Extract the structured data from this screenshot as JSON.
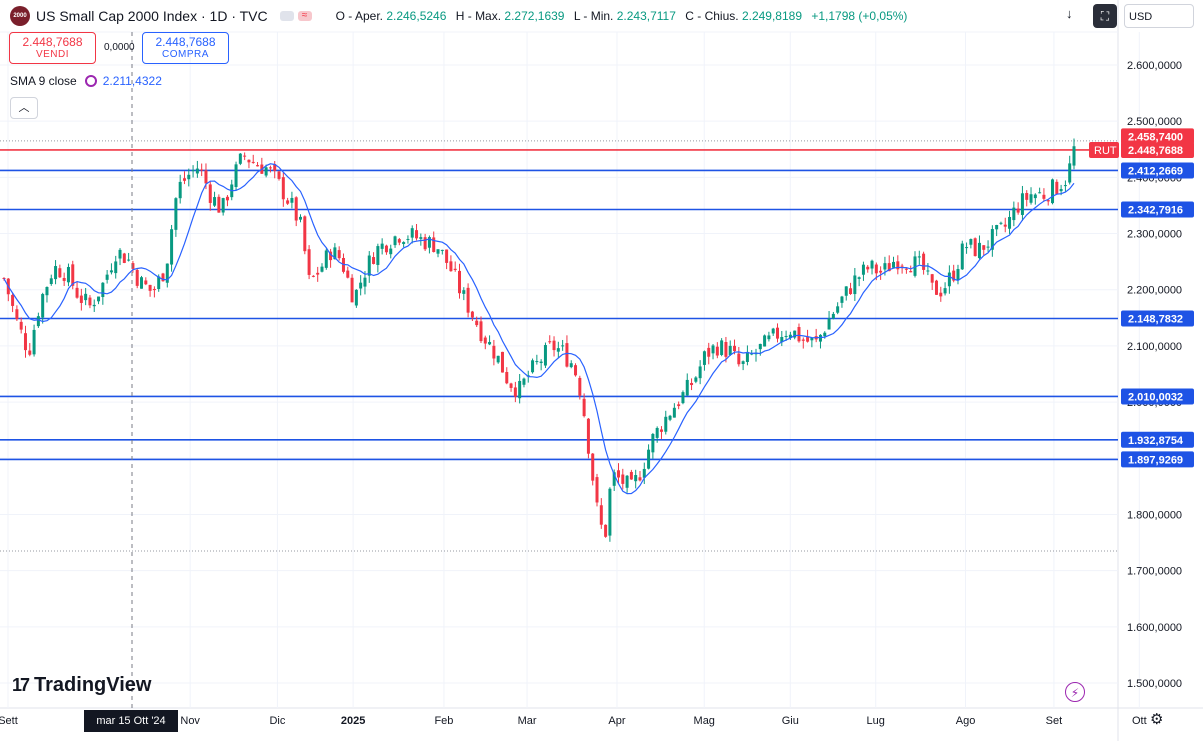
{
  "header": {
    "logo_text": "2000",
    "symbol": "US Small Cap 2000 Index · 1D · TVC",
    "ohlc": [
      {
        "label": "O - Aper.",
        "value": "2.246,5246"
      },
      {
        "label": "H - Max.",
        "value": "2.272,1639"
      },
      {
        "label": "L - Min.",
        "value": "2.243,7117"
      },
      {
        "label": "C - Chius.",
        "value": "2.249,8189"
      }
    ],
    "change": "+1,1798 (+0,05%)",
    "currency": "USD",
    "icons": [
      "download-arrow-icon",
      "screenshot-icon"
    ]
  },
  "trade": {
    "sell_price": "2.448,7688",
    "sell_label": "VENDI",
    "spread": "0,0000",
    "buy_price": "2.448,7688",
    "buy_label": "COMPRA"
  },
  "indicator": {
    "label": "SMA 9 close",
    "value": "2.211,4322"
  },
  "branding": {
    "logo": "TradingView"
  },
  "crosshair_date": "mar 15 Ott '24",
  "chart_data": {
    "type": "candlestick",
    "ylim": [
      1440000,
      2640000
    ],
    "y_ticks": [
      "2.600,0000",
      "2.500,0000",
      "2.400,0000",
      "2.300,0000",
      "2.200,0000",
      "2.100,0000",
      "2.000,0000",
      "1.900,0000",
      "1.800,0000",
      "1.700,0000",
      "1.600,0000",
      "1.500,0000"
    ],
    "y_tick_values": [
      2600000,
      2500000,
      2400000,
      2300000,
      2200000,
      2100000,
      2000000,
      1900000,
      1800000,
      1700000,
      1600000,
      1500000
    ],
    "x_labels": [
      "Sett",
      "Nov",
      "Dic",
      "2025",
      "Feb",
      "Mar",
      "Apr",
      "Mag",
      "Giu",
      "Lug",
      "Ago",
      "Set",
      "Ott"
    ],
    "x_label_positions": [
      0.0,
      0.1653,
      0.2445,
      0.3132,
      0.3956,
      0.471,
      0.5526,
      0.6318,
      0.7099,
      0.7874,
      0.8689,
      0.9491,
      1.0266
    ],
    "levels": [
      {
        "label": "2.412,2669",
        "value": 2412266.9,
        "color": "#1e53e5",
        "style": "solid-blue-label"
      },
      {
        "label": "2.342,7916",
        "value": 2342791.6,
        "color": "#1e53e5"
      },
      {
        "label": "2.148,7832",
        "value": 2148783.2,
        "color": "#1e53e5"
      },
      {
        "label": "2.010,0032",
        "value": 2010003.2,
        "color": "#1e53e5"
      },
      {
        "label": "1.932,8754",
        "value": 1932875.4,
        "color": "#1e53e5"
      },
      {
        "label": "1.897,9269",
        "value": 1897926.9,
        "color": "#1e53e5"
      }
    ],
    "price_line": {
      "label": "2.448,7688",
      "value": 2448768.8,
      "tag": "RUT",
      "color": "#f23645"
    },
    "high_label": {
      "label": "2.458,7400",
      "value": 2458740.0,
      "color": "#f23645"
    },
    "high_dotted": 2465000,
    "low_dotted": 1735000,
    "series_points": [
      [
        0,
        2220
      ],
      [
        8,
        2140
      ],
      [
        15,
        2090
      ],
      [
        22,
        2180
      ],
      [
        30,
        2240
      ],
      [
        38,
        2230
      ],
      [
        45,
        2190
      ],
      [
        52,
        2170
      ],
      [
        60,
        2210
      ],
      [
        68,
        2270
      ],
      [
        75,
        2255
      ],
      [
        82,
        2215
      ],
      [
        90,
        2195
      ],
      [
        98,
        2240
      ],
      [
        105,
        2380
      ],
      [
        112,
        2405
      ],
      [
        118,
        2420
      ],
      [
        125,
        2370
      ],
      [
        132,
        2340
      ],
      [
        138,
        2395
      ],
      [
        145,
        2440
      ],
      [
        152,
        2425
      ],
      [
        160,
        2415
      ],
      [
        168,
        2380
      ],
      [
        175,
        2345
      ],
      [
        180,
        2310
      ],
      [
        185,
        2210
      ],
      [
        192,
        2240
      ],
      [
        198,
        2270
      ],
      [
        204,
        2255
      ],
      [
        212,
        2185
      ],
      [
        218,
        2230
      ],
      [
        225,
        2270
      ],
      [
        232,
        2285
      ],
      [
        240,
        2300
      ],
      [
        248,
        2295
      ],
      [
        256,
        2285
      ],
      [
        262,
        2280
      ],
      [
        270,
        2240
      ],
      [
        276,
        2200
      ],
      [
        283,
        2160
      ],
      [
        290,
        2120
      ],
      [
        298,
        2085
      ],
      [
        305,
        2040
      ],
      [
        312,
        2020
      ],
      [
        318,
        2050
      ],
      [
        325,
        2075
      ],
      [
        332,
        2100
      ],
      [
        338,
        2090
      ],
      [
        345,
        2065
      ],
      [
        350,
        2010
      ],
      [
        355,
        1900
      ],
      [
        360,
        1790
      ],
      [
        364,
        1760
      ],
      [
        368,
        1870
      ],
      [
        374,
        1860
      ],
      [
        380,
        1845
      ],
      [
        386,
        1880
      ],
      [
        392,
        1930
      ],
      [
        398,
        1960
      ],
      [
        405,
        1990
      ],
      [
        412,
        2015
      ],
      [
        418,
        2040
      ],
      [
        425,
        2085
      ],
      [
        432,
        2100
      ],
      [
        440,
        2090
      ],
      [
        446,
        2060
      ],
      [
        452,
        2080
      ],
      [
        460,
        2100
      ],
      [
        468,
        2120
      ],
      [
        476,
        2130
      ],
      [
        484,
        2110
      ],
      [
        492,
        2105
      ],
      [
        500,
        2150
      ],
      [
        508,
        2185
      ],
      [
        516,
        2220
      ],
      [
        524,
        2240
      ],
      [
        532,
        2230
      ],
      [
        540,
        2255
      ],
      [
        548,
        2250
      ],
      [
        556,
        2240
      ],
      [
        562,
        2200
      ],
      [
        568,
        2200
      ],
      [
        575,
        2230
      ],
      [
        582,
        2280
      ],
      [
        590,
        2270
      ],
      [
        598,
        2290
      ],
      [
        606,
        2310
      ],
      [
        614,
        2350
      ],
      [
        622,
        2370
      ],
      [
        630,
        2370
      ],
      [
        638,
        2385
      ],
      [
        644,
        2400
      ],
      [
        648,
        2450
      ]
    ],
    "series_point_units": "index, price/1000"
  }
}
